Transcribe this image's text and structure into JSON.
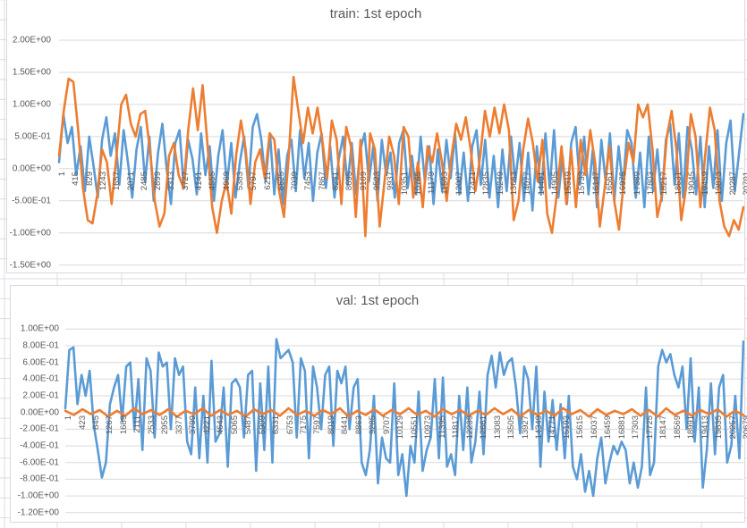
{
  "sheet": {
    "gridline_color": "#d7dde6",
    "background": "#ffffff"
  },
  "palette": {
    "blue": "#5b9bd5",
    "orange": "#ed7d31",
    "gridline": "#d9d9d9",
    "text": "#595959"
  },
  "chart_data": [
    {
      "type": "line",
      "title": "train: 1st epoch",
      "xlabel": "",
      "ylabel": "",
      "ylim": [
        -1.5,
        2.0
      ],
      "grid": true,
      "legend": "none",
      "y_ticks": [
        "2.00E+00",
        "1.50E+00",
        "1.00E+00",
        "5.00E-01",
        "0.00E+00",
        "-5.00E-01",
        "-1.00E+00",
        "-1.50E+00"
      ],
      "x_ticks": [
        "1",
        "415",
        "829",
        "1243",
        "1657",
        "2071",
        "2485",
        "2899",
        "3313",
        "3727",
        "4141",
        "4555",
        "4969",
        "5383",
        "5797",
        "6211",
        "6625",
        "7039",
        "7453",
        "7867",
        "8281",
        "8695",
        "9109",
        "9523",
        "9937",
        "10351",
        "10765",
        "11179",
        "11593",
        "12007",
        "12421",
        "12835",
        "13249",
        "13663",
        "14077",
        "14491",
        "14905",
        "15319",
        "15733",
        "16147",
        "16561",
        "16975",
        "17389",
        "17803",
        "18217",
        "18631",
        "19045",
        "19459",
        "19873",
        "20287",
        "20701"
      ],
      "x_last": 20701,
      "series": [
        {
          "name": "series-blue",
          "color": "#5b9bd5",
          "values": [
            0.1,
            0.85,
            0.4,
            0.65,
            -0.1,
            0.35,
            -0.35,
            0.5,
            0.05,
            -0.45,
            0.45,
            0.8,
            0.2,
            0.55,
            -0.25,
            0.6,
            0.1,
            -0.45,
            0.3,
            0.65,
            -0.2,
            0.5,
            -0.5,
            0.25,
            0.7,
            0.0,
            -0.55,
            0.4,
            0.6,
            -0.3,
            0.45,
            0.15,
            -0.4,
            0.55,
            -0.1,
            0.35,
            -0.5,
            0.2,
            0.6,
            -0.25,
            0.4,
            -0.45,
            0.1,
            0.5,
            -0.3,
            0.65,
            0.85,
            0.45,
            -0.2,
            0.55,
            -0.4,
            0.3,
            -0.55,
            0.2,
            0.45,
            -0.35,
            0.6,
            -0.15,
            0.4,
            -0.5,
            0.25,
            0.55,
            -0.3,
            0.35,
            -0.45,
            0.15,
            0.5,
            -0.25,
            0.4,
            -0.4,
            0.3,
            0.55,
            -0.2,
            0.35,
            -0.5,
            0.45,
            -0.1,
            0.25,
            -0.45,
            0.4,
            0.6,
            -0.3,
            0.2,
            -0.4,
            0.5,
            -0.2,
            0.35,
            -0.55,
            0.3,
            -0.35,
            0.45,
            -0.15,
            0.55,
            -0.4,
            0.25,
            -0.5,
            0.35,
            0.6,
            -0.25,
            0.45,
            -0.45,
            0.2,
            -0.6,
            0.3,
            -0.35,
            0.5,
            -0.2,
            0.4,
            -0.5,
            0.25,
            -0.65,
            0.35,
            -0.4,
            0.55,
            -0.3,
            0.6,
            -0.45,
            0.2,
            -0.55,
            0.4,
            0.65,
            -0.25,
            0.5,
            -0.4,
            0.3,
            -0.6,
            0.45,
            -0.2,
            0.55,
            -0.5,
            0.35,
            -0.3,
            0.6,
            0.4,
            -0.45,
            0.25,
            -0.6,
            0.5,
            -0.35,
            0.3,
            -0.5,
            0.45,
            0.7,
            -0.25,
            0.55,
            -0.45,
            0.65,
            0.3,
            -0.4,
            0.5,
            -0.6,
            0.35,
            -0.3,
            0.6,
            -0.5,
            0.4,
            0.75,
            -0.35,
            0.25,
            0.85
          ]
        },
        {
          "name": "series-orange",
          "color": "#ed7d31",
          "values": [
            0.2,
            0.9,
            1.4,
            1.35,
            0.6,
            -0.3,
            -0.8,
            -0.85,
            -0.4,
            0.3,
            0.1,
            -0.55,
            0.2,
            1.0,
            1.15,
            0.7,
            0.5,
            0.85,
            0.9,
            0.3,
            -0.5,
            -0.9,
            -0.7,
            0.2,
            0.4,
            -0.1,
            -0.3,
            0.6,
            1.25,
            0.6,
            1.3,
            0.4,
            -0.6,
            -1.0,
            -0.5,
            -0.2,
            -0.7,
            0.2,
            0.75,
            0.3,
            -0.55,
            0.1,
            0.3,
            -0.15,
            0.55,
            0.45,
            -0.35,
            -0.75,
            0.2,
            1.43,
            0.9,
            0.4,
            0.95,
            0.55,
            0.95,
            0.45,
            -0.15,
            0.75,
            0.45,
            -0.55,
            0.65,
            0.35,
            -0.75,
            0.45,
            -1.05,
            0.55,
            0.3,
            -0.9,
            -0.2,
            0.5,
            0.2,
            -0.55,
            0.65,
            0.5,
            -0.45,
            0.1,
            -0.6,
            0.35,
            0.1,
            0.55,
            0.1,
            -0.5,
            0.2,
            0.7,
            0.45,
            0.8,
            0.3,
            -0.35,
            0.2,
            0.9,
            0.5,
            0.95,
            0.55,
            1.0,
            0.6,
            -0.8,
            -0.5,
            0.3,
            0.78,
            0.4,
            -0.2,
            0.45,
            -0.7,
            -1.0,
            -0.4,
            0.35,
            -0.55,
            0.3,
            -0.6,
            0.45,
            -0.1,
            0.6,
            0.1,
            -0.9,
            -0.3,
            0.35,
            -0.5,
            -0.95,
            -0.2,
            0.4,
            0.1,
            1.0,
            0.8,
            1.0,
            0.3,
            -0.75,
            -0.4,
            0.5,
            0.9,
            0.3,
            -0.8,
            -0.3,
            0.85,
            0.5,
            -0.6,
            0.2,
            0.95,
            0.6,
            -0.5,
            -0.9,
            -1.05,
            -0.8,
            -0.95,
            -0.6
          ]
        }
      ]
    },
    {
      "type": "line",
      "title": "val: 1st epoch",
      "xlabel": "",
      "ylabel": "",
      "ylim": [
        -1.2,
        1.0
      ],
      "grid": true,
      "legend": "none",
      "y_ticks": [
        "1.00E+00",
        "8.00E-01",
        "6.00E-01",
        "4.00E-01",
        "2.00E-01",
        "0.00E+00",
        "-2.00E-01",
        "-4.00E-01",
        "-6.00E-01",
        "-8.00E-01",
        "-1.00E+00",
        "-1.20E+00"
      ],
      "x_ticks": [
        "1",
        "423",
        "845",
        "1267",
        "1689",
        "2111",
        "2533",
        "2955",
        "3377",
        "3799",
        "4221",
        "4643",
        "5065",
        "5487",
        "5909",
        "6331",
        "6753",
        "7175",
        "7597",
        "8019",
        "8441",
        "8863",
        "9285",
        "9707",
        "10129",
        "10551",
        "10973",
        "11395",
        "11817",
        "12239",
        "12661",
        "13083",
        "13505",
        "13927",
        "14349",
        "14771",
        "15193",
        "15615",
        "16037",
        "16459",
        "16881",
        "17303",
        "17725",
        "18147",
        "18569",
        "18991",
        "19413",
        "19835",
        "20257",
        "20679"
      ],
      "x_last": 20679,
      "series": [
        {
          "name": "series-blue",
          "color": "#5b9bd5",
          "values": [
            0.05,
            0.75,
            0.78,
            0.1,
            0.45,
            0.2,
            0.5,
            -0.15,
            -0.45,
            -0.78,
            -0.6,
            0.1,
            0.3,
            0.45,
            -0.1,
            0.55,
            0.6,
            -0.2,
            0.4,
            -0.45,
            0.65,
            0.5,
            -0.3,
            0.72,
            0.55,
            0.6,
            -0.2,
            0.65,
            0.45,
            0.55,
            -0.35,
            -0.5,
            0.3,
            -0.55,
            0.2,
            -0.6,
            0.62,
            -0.35,
            -0.25,
            0.3,
            -0.65,
            0.35,
            0.4,
            0.3,
            -0.3,
            0.45,
            0.5,
            -0.7,
            0.35,
            -0.45,
            0.55,
            -0.6,
            0.88,
            0.65,
            0.7,
            0.75,
            0.6,
            -0.3,
            0.65,
            0.5,
            -0.55,
            0.55,
            0.3,
            -0.2,
            0.45,
            0.55,
            -0.4,
            0.5,
            0.35,
            0.55,
            -0.2,
            0.3,
            0.4,
            -0.6,
            -0.75,
            -0.45,
            0.2,
            -0.85,
            -0.3,
            -0.55,
            -0.6,
            0.35,
            -0.75,
            -0.5,
            -1.0,
            -0.4,
            -0.6,
            0.25,
            -0.7,
            -0.45,
            -0.3,
            0.4,
            -0.55,
            0.42,
            -0.65,
            -0.5,
            -0.75,
            0.2,
            -0.45,
            0.3,
            -0.6,
            -0.35,
            0.25,
            -0.5,
            0.45,
            0.68,
            0.3,
            0.72,
            0.45,
            0.6,
            0.65,
            0.3,
            -0.25,
            0.55,
            0.4,
            -0.2,
            0.55,
            -0.65,
            0.25,
            -0.35,
            0.15,
            -0.45,
            0.1,
            -0.55,
            0.2,
            -0.65,
            -0.8,
            -0.5,
            -0.95,
            -0.7,
            -1.0,
            -0.55,
            -0.3,
            -0.85,
            -0.6,
            -0.4,
            -0.5,
            -0.35,
            -0.45,
            -0.85,
            -0.6,
            -0.9,
            -0.65,
            0.3,
            -0.75,
            -0.6,
            0.55,
            0.75,
            0.6,
            0.7,
            0.45,
            0.3,
            0.55,
            -0.2,
            0.65,
            -0.35,
            0.3,
            -0.9,
            -0.45,
            0.35,
            -0.5,
            0.3,
            0.45,
            -0.6,
            -0.4,
            0.2,
            -0.55,
            0.85
          ]
        },
        {
          "name": "series-orange",
          "color": "#ed7d31",
          "values": [
            0.02,
            -0.03,
            0.04,
            -0.02,
            0.03,
            -0.05,
            0.02,
            -0.04,
            0.05,
            -0.02,
            0.03,
            -0.03,
            0.04,
            -0.05,
            0.02,
            -0.02,
            0.05,
            -0.04,
            0.03,
            -0.03,
            0.02,
            -0.05,
            0.04,
            -0.02,
            0.03,
            -0.04,
            0.05,
            -0.03,
            0.02,
            -0.04,
            0.03,
            -0.02,
            0.05,
            -0.05,
            0.02,
            -0.03,
            0.04,
            -0.04,
            0.03,
            -0.02,
            0.05,
            -0.03,
            0.02,
            -0.05,
            0.04,
            -0.02,
            0.03,
            -0.04,
            0.02,
            -0.03,
            0.05,
            -0.02,
            0.04,
            -0.05,
            0.03,
            -0.03,
            0.02,
            -0.04,
            0.05,
            -0.02,
            0.03,
            -0.05,
            0.04,
            -0.03,
            0.02,
            -0.02,
            0.04,
            -0.04,
            0.03,
            -0.05,
            0.05,
            -0.03,
            0.02,
            -0.04,
            0.03,
            -0.02,
            0.04,
            -0.05,
            0.02,
            -0.03
          ]
        }
      ]
    }
  ]
}
